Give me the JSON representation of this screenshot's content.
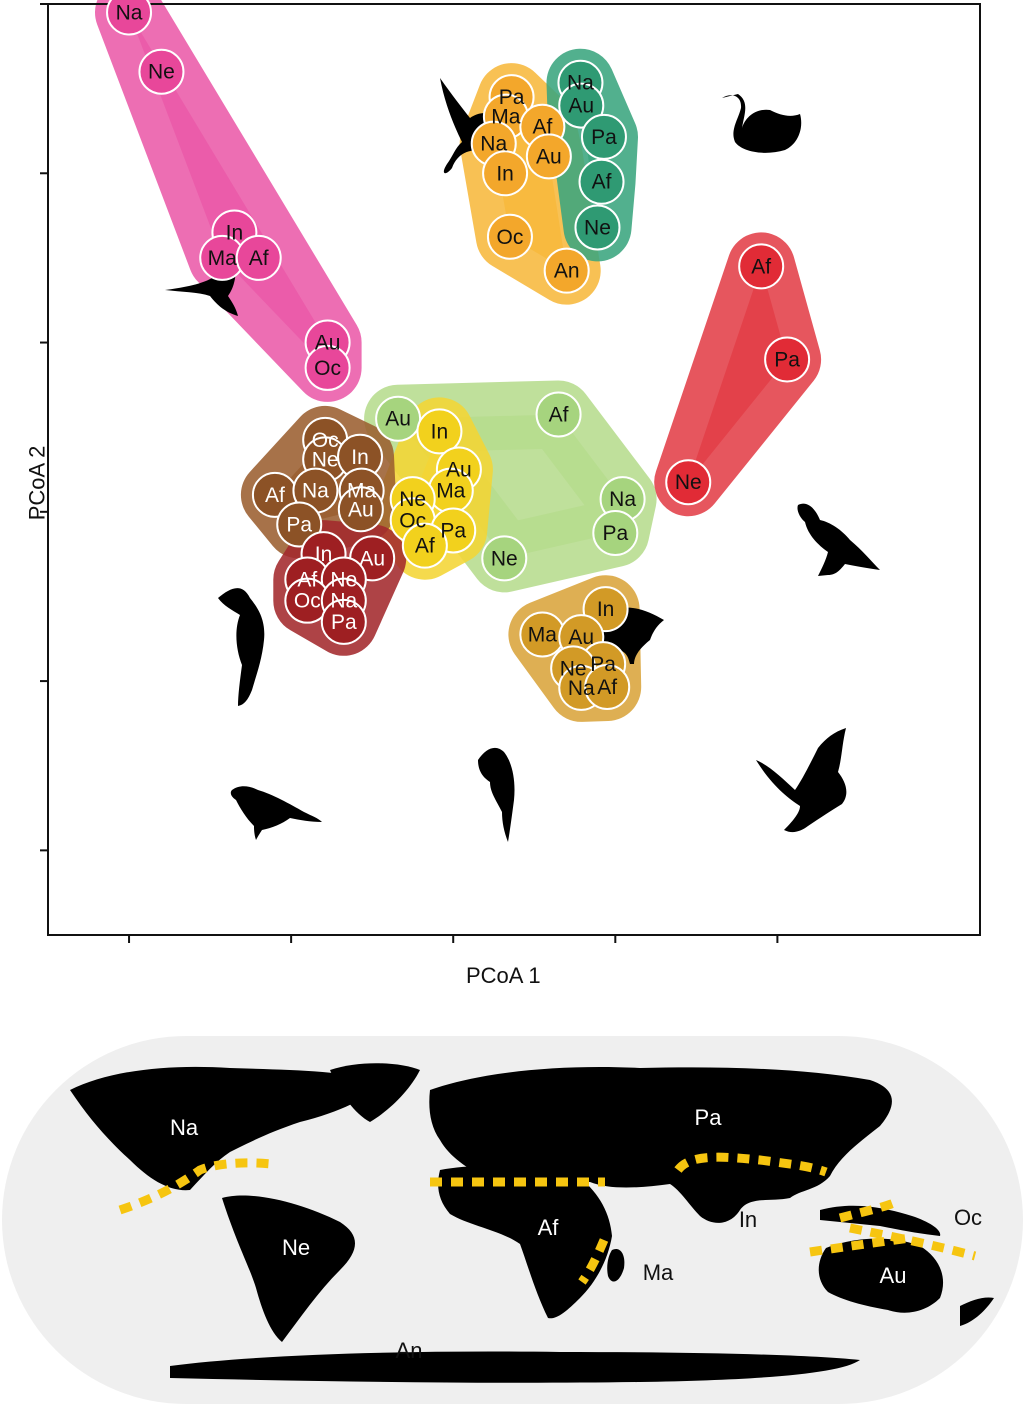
{
  "chart_data": {
    "type": "scatter",
    "xlabel": "PCoA 1",
    "ylabel": "PCoA 2",
    "xlim": [
      -0.2,
      0.95
    ],
    "ylim": [
      -0.65,
      0.45
    ],
    "xticks": [
      -0.1,
      0.1,
      0.3,
      0.5,
      0.7
    ],
    "yticks": [
      -0.55,
      -0.35,
      -0.15,
      0.05,
      0.25,
      0.45
    ],
    "grid": false,
    "groups": [
      {
        "color": "#e8479a",
        "hull_color": "#eb5aa8",
        "points": [
          {
            "label": "Na",
            "x": -0.1,
            "y": 0.44
          },
          {
            "label": "Ne",
            "x": -0.06,
            "y": 0.37
          },
          {
            "label": "In",
            "x": 0.03,
            "y": 0.18
          },
          {
            "label": "Ma",
            "x": 0.015,
            "y": 0.15
          },
          {
            "label": "Af",
            "x": 0.06,
            "y": 0.15
          },
          {
            "label": "Au",
            "x": 0.145,
            "y": 0.05
          },
          {
            "label": "Oc",
            "x": 0.145,
            "y": 0.02
          }
        ]
      },
      {
        "color": "#f3a72b",
        "hull_color": "#f7b83c",
        "points": [
          {
            "label": "Pa",
            "x": 0.372,
            "y": 0.34
          },
          {
            "label": "Ma",
            "x": 0.365,
            "y": 0.317
          },
          {
            "label": "Af",
            "x": 0.41,
            "y": 0.305
          },
          {
            "label": "Na",
            "x": 0.35,
            "y": 0.285
          },
          {
            "label": "Au",
            "x": 0.418,
            "y": 0.27
          },
          {
            "label": "In",
            "x": 0.364,
            "y": 0.25
          },
          {
            "label": "Oc",
            "x": 0.37,
            "y": 0.175
          },
          {
            "label": "An",
            "x": 0.44,
            "y": 0.135
          }
        ]
      },
      {
        "color": "#2f9a73",
        "hull_color": "#3aa57e",
        "points": [
          {
            "label": "Na",
            "x": 0.457,
            "y": 0.357
          },
          {
            "label": "Au",
            "x": 0.458,
            "y": 0.33
          },
          {
            "label": "Pa",
            "x": 0.486,
            "y": 0.293
          },
          {
            "label": "Af",
            "x": 0.483,
            "y": 0.24
          },
          {
            "label": "Ne",
            "x": 0.478,
            "y": 0.186
          }
        ]
      },
      {
        "color": "#e12b36",
        "hull_color": "#e33f48",
        "points": [
          {
            "label": "Af",
            "x": 0.68,
            "y": 0.14
          },
          {
            "label": "Pa",
            "x": 0.712,
            "y": 0.03
          },
          {
            "label": "Ne",
            "x": 0.59,
            "y": -0.115
          }
        ]
      },
      {
        "color": "#a6d47e",
        "hull_color": "#b6dc8d",
        "points": [
          {
            "label": "Au",
            "x": 0.232,
            "y": -0.04
          },
          {
            "label": "Af",
            "x": 0.43,
            "y": -0.035
          },
          {
            "label": "Na",
            "x": 0.509,
            "y": -0.135
          },
          {
            "label": "Pa",
            "x": 0.5,
            "y": -0.175
          },
          {
            "label": "Ne",
            "x": 0.363,
            "y": -0.205
          }
        ]
      },
      {
        "color": "#f2d11d",
        "hull_color": "#f4d534",
        "points": [
          {
            "label": "In",
            "x": 0.283,
            "y": -0.055
          },
          {
            "label": "Au",
            "x": 0.307,
            "y": -0.1
          },
          {
            "label": "Ma",
            "x": 0.297,
            "y": -0.125
          },
          {
            "label": "Ne",
            "x": 0.25,
            "y": -0.135
          },
          {
            "label": "Oc",
            "x": 0.25,
            "y": -0.16
          },
          {
            "label": "Pa",
            "x": 0.3,
            "y": -0.172
          },
          {
            "label": "Af",
            "x": 0.265,
            "y": -0.19
          }
        ]
      },
      {
        "color": "#8c5226",
        "hull_color": "#9b5e30",
        "points": [
          {
            "label": "Oc",
            "x": 0.142,
            "y": -0.065
          },
          {
            "label": "Ne",
            "x": 0.142,
            "y": -0.088
          },
          {
            "label": "In",
            "x": 0.185,
            "y": -0.085
          },
          {
            "label": "Af",
            "x": 0.08,
            "y": -0.13
          },
          {
            "label": "Na",
            "x": 0.13,
            "y": -0.125
          },
          {
            "label": "Ma",
            "x": 0.187,
            "y": -0.125
          },
          {
            "label": "Au",
            "x": 0.186,
            "y": -0.147
          },
          {
            "label": "Pa",
            "x": 0.11,
            "y": -0.165
          }
        ]
      },
      {
        "color": "#9e1f22",
        "hull_color": "#a3292c",
        "points": [
          {
            "label": "In",
            "x": 0.14,
            "y": -0.2
          },
          {
            "label": "Au",
            "x": 0.2,
            "y": -0.205
          },
          {
            "label": "Af",
            "x": 0.12,
            "y": -0.23
          },
          {
            "label": "Ne",
            "x": 0.165,
            "y": -0.23
          },
          {
            "label": "Oc",
            "x": 0.12,
            "y": -0.255
          },
          {
            "label": "Na",
            "x": 0.165,
            "y": -0.255
          },
          {
            "label": "Pa",
            "x": 0.165,
            "y": -0.28
          }
        ]
      },
      {
        "color": "#d29a26",
        "hull_color": "#d9a43b",
        "points": [
          {
            "label": "In",
            "x": 0.488,
            "y": -0.265
          },
          {
            "label": "Ma",
            "x": 0.41,
            "y": -0.295
          },
          {
            "label": "Au",
            "x": 0.458,
            "y": -0.298
          },
          {
            "label": "Pa",
            "x": 0.485,
            "y": -0.33
          },
          {
            "label": "Ne",
            "x": 0.448,
            "y": -0.335
          },
          {
            "label": "Na",
            "x": 0.458,
            "y": -0.358
          },
          {
            "label": "Af",
            "x": 0.49,
            "y": -0.357
          }
        ]
      }
    ]
  },
  "map": {
    "regions": [
      "Na",
      "Ne",
      "Pa",
      "Af",
      "In",
      "Ma",
      "Oc",
      "Au",
      "An"
    ],
    "ocean_color": "#efefef",
    "land_color": "#000000",
    "boundary_color": "#f6c510"
  }
}
